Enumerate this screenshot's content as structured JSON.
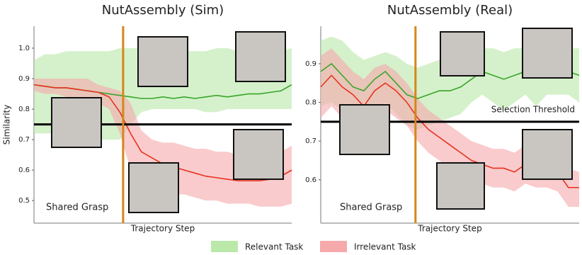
{
  "charts": [
    {
      "type": "line",
      "title": "NutAssembly (Sim)",
      "ylabel": "Similarity",
      "xlabel": "Trajectory Step",
      "ylim": [
        0.426,
        1.072
      ],
      "yticks": [
        0.5,
        0.6,
        0.7,
        0.8,
        0.9,
        {
          "value": 1.0,
          "label": "1.0"
        }
      ],
      "threshold": {
        "value": 0.75
      },
      "vline": {
        "x": 8.3,
        "label": "Shared Grasp",
        "color": "#d4861a"
      },
      "series": [
        {
          "name": "Relevant Task",
          "color": "#3aa52a",
          "band_color": "#b9e8a9",
          "values": [
            0.88,
            0.875,
            0.87,
            0.87,
            0.865,
            0.86,
            0.855,
            0.85,
            0.845,
            0.84,
            0.835,
            0.835,
            0.84,
            0.835,
            0.84,
            0.835,
            0.84,
            0.845,
            0.84,
            0.845,
            0.85,
            0.85,
            0.855,
            0.86,
            0.88
          ],
          "upper": [
            0.96,
            0.98,
            0.98,
            0.99,
            0.99,
            0.99,
            0.99,
            0.99,
            1.0,
            1.0,
            1.0,
            0.99,
            0.99,
            0.99,
            0.99,
            0.99,
            0.99,
            1.0,
            1.0,
            0.99,
            0.99,
            0.99,
            0.99,
            0.99,
            1.0
          ],
          "lower": [
            0.72,
            0.72,
            0.72,
            0.71,
            0.71,
            0.7,
            0.7,
            0.7,
            0.7,
            0.75,
            0.79,
            0.8,
            0.8,
            0.8,
            0.8,
            0.8,
            0.79,
            0.79,
            0.8,
            0.8,
            0.8,
            0.8,
            0.8,
            0.8,
            0.8
          ]
        },
        {
          "name": "Irrelevant Task",
          "color": "#e8321e",
          "band_color": "#f5a9ab",
          "values": [
            0.88,
            0.875,
            0.87,
            0.87,
            0.865,
            0.86,
            0.855,
            0.84,
            0.79,
            0.72,
            0.66,
            0.64,
            0.62,
            0.61,
            0.6,
            0.59,
            0.58,
            0.575,
            0.57,
            0.565,
            0.565,
            0.565,
            0.57,
            0.58,
            0.6
          ],
          "upper": [
            0.9,
            0.9,
            0.9,
            0.9,
            0.9,
            0.9,
            0.88,
            0.87,
            0.86,
            0.82,
            0.73,
            0.7,
            0.69,
            0.69,
            0.68,
            0.67,
            0.67,
            0.66,
            0.66,
            0.65,
            0.65,
            0.65,
            0.65,
            0.66,
            0.68
          ],
          "lower": [
            0.86,
            0.85,
            0.85,
            0.84,
            0.84,
            0.83,
            0.82,
            0.8,
            0.72,
            0.6,
            0.56,
            0.54,
            0.53,
            0.52,
            0.52,
            0.51,
            0.5,
            0.5,
            0.49,
            0.49,
            0.49,
            0.48,
            0.48,
            0.48,
            0.49
          ]
        }
      ]
    },
    {
      "type": "line",
      "title": "NutAssembly (Real)",
      "xlabel": "Trajectory Step",
      "ylim": [
        0.488,
        0.997
      ],
      "yticks": [
        0.6,
        0.7,
        0.8,
        0.9
      ],
      "threshold": {
        "value": 0.75,
        "label": "Selection Threshold"
      },
      "vline": {
        "x": 8.8,
        "label": "Shared Grasp",
        "color": "#d4861a"
      },
      "series": [
        {
          "color": "#3aa52a",
          "band_color": "#b9e8a9",
          "values": [
            0.88,
            0.9,
            0.87,
            0.84,
            0.83,
            0.86,
            0.88,
            0.85,
            0.82,
            0.81,
            0.82,
            0.83,
            0.83,
            0.84,
            0.86,
            0.88,
            0.87,
            0.86,
            0.87,
            0.88,
            0.87,
            0.88,
            0.88,
            0.88,
            0.87
          ],
          "upper": [
            0.96,
            0.97,
            0.96,
            0.93,
            0.91,
            0.92,
            0.93,
            0.92,
            0.9,
            0.89,
            0.9,
            0.91,
            0.91,
            0.92,
            0.93,
            0.94,
            0.94,
            0.93,
            0.94,
            0.94,
            0.94,
            0.94,
            0.94,
            0.94,
            0.94
          ],
          "lower": [
            0.79,
            0.8,
            0.78,
            0.75,
            0.74,
            0.78,
            0.8,
            0.77,
            0.74,
            0.73,
            0.74,
            0.75,
            0.76,
            0.77,
            0.8,
            0.82,
            0.8,
            0.78,
            0.8,
            0.82,
            0.79,
            0.82,
            0.82,
            0.82,
            0.8
          ]
        },
        {
          "color": "#e8321e",
          "band_color": "#f5a9ab",
          "values": [
            0.84,
            0.87,
            0.84,
            0.82,
            0.79,
            0.83,
            0.85,
            0.83,
            0.8,
            0.76,
            0.73,
            0.71,
            0.69,
            0.67,
            0.65,
            0.64,
            0.63,
            0.63,
            0.62,
            0.64,
            0.63,
            0.63,
            0.62,
            0.58,
            0.58
          ],
          "upper": [
            0.92,
            0.94,
            0.91,
            0.88,
            0.86,
            0.89,
            0.9,
            0.88,
            0.85,
            0.81,
            0.78,
            0.76,
            0.74,
            0.72,
            0.7,
            0.69,
            0.68,
            0.68,
            0.67,
            0.69,
            0.68,
            0.67,
            0.66,
            0.63,
            0.62
          ],
          "lower": [
            0.76,
            0.79,
            0.76,
            0.75,
            0.72,
            0.76,
            0.78,
            0.76,
            0.74,
            0.7,
            0.67,
            0.65,
            0.63,
            0.61,
            0.6,
            0.59,
            0.58,
            0.58,
            0.57,
            0.59,
            0.58,
            0.58,
            0.57,
            0.53,
            0.53
          ]
        }
      ]
    }
  ]
}
